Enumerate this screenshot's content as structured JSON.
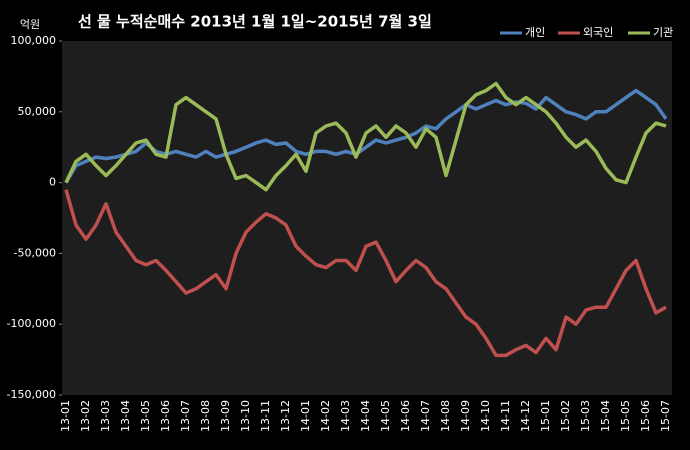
{
  "chart_data": {
    "type": "line",
    "title": "선 물 누적순매수 2013년 1월 1일~2015년 7월 3일",
    "y_label": "억원",
    "categories": [
      "13-01",
      null,
      "13-02",
      null,
      "13-03",
      null,
      "13-04",
      null,
      "13-05",
      null,
      "13-06",
      null,
      "13-07",
      null,
      "13-08",
      null,
      "13-09",
      null,
      "13-10",
      null,
      "13-11",
      null,
      "13-12",
      null,
      "14-01",
      null,
      "14-02",
      null,
      "14-03",
      null,
      "14-04",
      null,
      "14-05",
      null,
      "14-06",
      null,
      "14-07",
      null,
      "14-08",
      null,
      "14-09",
      null,
      "14-10",
      null,
      "14-11",
      null,
      "14-12",
      null,
      "15-01",
      null,
      "15-02",
      null,
      "15-03",
      null,
      "15-04",
      null,
      "15-05",
      null,
      "15-06",
      null,
      "15-07"
    ],
    "series": [
      {
        "name": "개인",
        "color": "#4f81bd",
        "values": [
          0,
          12000,
          15000,
          18000,
          17000,
          18000,
          20000,
          22000,
          28000,
          22000,
          20000,
          22000,
          20000,
          18000,
          22000,
          18000,
          20000,
          22000,
          25000,
          28000,
          30000,
          27000,
          28000,
          22000,
          20000,
          22000,
          22000,
          20000,
          22000,
          20000,
          25000,
          30000,
          28000,
          30000,
          32000,
          35000,
          40000,
          38000,
          45000,
          50000,
          55000,
          52000,
          55000,
          58000,
          55000,
          57000,
          56000,
          52000,
          60000,
          55000,
          50000,
          48000,
          45000,
          50000,
          50000,
          55000,
          60000,
          65000,
          60000,
          55000,
          45000
        ]
      },
      {
        "name": "외국인",
        "color": "#c0504d",
        "values": [
          -5000,
          -30000,
          -40000,
          -30000,
          -15000,
          -35000,
          -45000,
          -55000,
          -58000,
          -55000,
          -62000,
          -70000,
          -78000,
          -75000,
          -70000,
          -65000,
          -75000,
          -50000,
          -35000,
          -28000,
          -22000,
          -25000,
          -30000,
          -45000,
          -52000,
          -58000,
          -60000,
          -55000,
          -55000,
          -62000,
          -45000,
          -42000,
          -55000,
          -70000,
          -62000,
          -55000,
          -60000,
          -70000,
          -75000,
          -85000,
          -95000,
          -100000,
          -110000,
          -122000,
          -122000,
          -118000,
          -115000,
          -120000,
          -110000,
          -118000,
          -95000,
          -100000,
          -90000,
          -88000,
          -88000,
          -75000,
          -62000,
          -55000,
          -75000,
          -92000,
          -88000
        ]
      },
      {
        "name": "기관",
        "color": "#9bbb59",
        "values": [
          0,
          15000,
          20000,
          12000,
          5000,
          12000,
          20000,
          28000,
          30000,
          20000,
          18000,
          55000,
          60000,
          55000,
          50000,
          45000,
          20000,
          3000,
          5000,
          0,
          -5000,
          5000,
          12000,
          20000,
          8000,
          35000,
          40000,
          42000,
          35000,
          18000,
          35000,
          40000,
          32000,
          40000,
          35000,
          25000,
          38000,
          32000,
          5000,
          30000,
          55000,
          62000,
          65000,
          70000,
          60000,
          55000,
          60000,
          55000,
          50000,
          42000,
          32000,
          25000,
          30000,
          22000,
          10000,
          2000,
          0,
          18000,
          35000,
          42000,
          40000
        ]
      }
    ],
    "ylim": [
      -150000,
      100000
    ],
    "yticks": [
      {
        "value": -150000,
        "label": "-150,000"
      },
      {
        "value": -100000,
        "label": "-100,000"
      },
      {
        "value": -50000,
        "label": "-50,000"
      },
      0,
      {
        "value": 50000,
        "label": "50,000"
      },
      {
        "value": 100000,
        "label": "100,000"
      }
    ],
    "grid": false,
    "legend": "top-right"
  }
}
